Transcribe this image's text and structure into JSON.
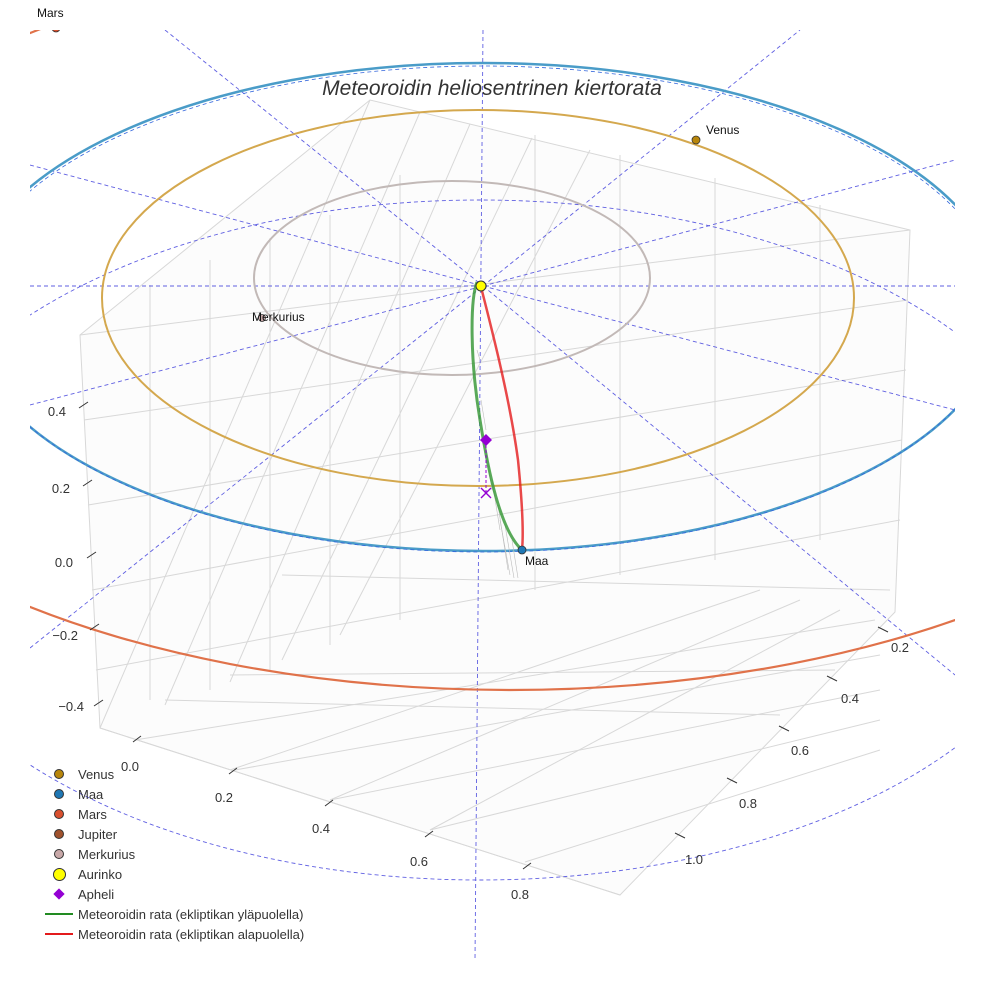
{
  "chart_data": {
    "type": "scatter3d",
    "title": "Meteoroidin heliosentrinen kiertorata",
    "x_ticks": [
      "0.0",
      "0.2",
      "0.4",
      "0.6",
      "0.8"
    ],
    "y_ticks": [
      "0.2",
      "0.4",
      "0.6",
      "0.8",
      "1.0"
    ],
    "z_ticks": [
      "0.4",
      "0.2",
      "0.0",
      "−0.2",
      "−0.4"
    ],
    "planet_labels": {
      "mars": "Mars",
      "venus": "Venus",
      "merkurius": "Merkurius",
      "maa": "Maa"
    },
    "legend": [
      {
        "label": "Venus",
        "kind": "dot",
        "color": "#b8860b"
      },
      {
        "label": "Maa",
        "kind": "dot",
        "color": "#1f77b4"
      },
      {
        "label": "Mars",
        "kind": "dot",
        "color": "#d9502e"
      },
      {
        "label": "Jupiter",
        "kind": "dot",
        "color": "#a0522d"
      },
      {
        "label": "Merkurius",
        "kind": "dot",
        "color": "#c8a8a8"
      },
      {
        "label": "Aurinko",
        "kind": "bigdot",
        "color": "#ffff00"
      },
      {
        "label": "Apheli",
        "kind": "diamond",
        "color": "#9400d3"
      },
      {
        "label": "Meteoroidin rata (ekliptikan yläpuolella)",
        "kind": "line",
        "color": "#228b22"
      },
      {
        "label": "Meteoroidin rata (ekliptikan alapuolella)",
        "kind": "line",
        "color": "#e31a1c"
      }
    ],
    "orbit_colors": {
      "merkurius": "#c2b9b7",
      "venus": "#d4a84e",
      "maa": "#4a9cc8",
      "mars": "#e0724a",
      "guides": "#3333dd",
      "meteoroid_above": "#228b22",
      "meteoroid_below": "#e31a1c"
    }
  }
}
